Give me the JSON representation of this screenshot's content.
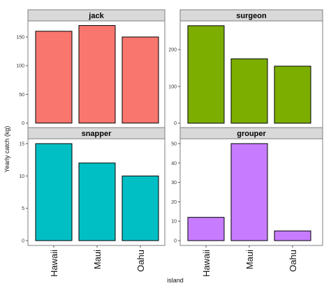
{
  "chart_data": {
    "type": "bar",
    "xlabel": "island",
    "ylabel": "Yearly catch (kg)",
    "categories": [
      "Hawaii",
      "Maui",
      "Oahu"
    ],
    "grid": false,
    "facets": [
      {
        "name": "jack",
        "color": "#F8766D",
        "values": [
          160,
          170,
          150
        ],
        "ylim": [
          -8,
          178
        ],
        "yticks": [
          0,
          50,
          100,
          150
        ]
      },
      {
        "name": "surgeon",
        "color": "#7CAE00",
        "values": [
          265,
          175,
          155
        ],
        "ylim": [
          -12,
          278
        ],
        "yticks": [
          0,
          100,
          200
        ]
      },
      {
        "name": "snapper",
        "color": "#00BFC4",
        "values": [
          15,
          12,
          10
        ],
        "ylim": [
          -0.75,
          15.75
        ],
        "yticks": [
          0,
          5,
          10,
          15
        ]
      },
      {
        "name": "grouper",
        "color": "#C77CFF",
        "values": [
          12,
          50,
          5
        ],
        "ylim": [
          -2.5,
          52.5
        ],
        "yticks": [
          0,
          10,
          20,
          30,
          40,
          50
        ]
      }
    ]
  }
}
